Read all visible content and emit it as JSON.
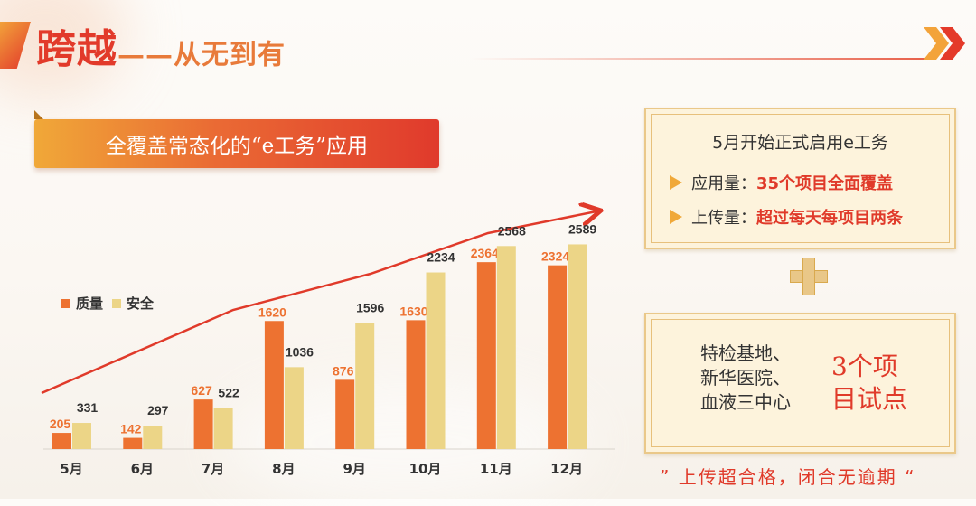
{
  "header": {
    "title": "跨越",
    "subtitle": "——从无到有"
  },
  "banner": {
    "text": "全覆盖常态化的“e工务”应用"
  },
  "legend": [
    {
      "label": "质量",
      "color": "#ed7231"
    },
    {
      "label": "安全",
      "color": "#ecd587"
    }
  ],
  "chart_data": {
    "type": "bar",
    "categories": [
      "5月",
      "6月",
      "7月",
      "8月",
      "9月",
      "10月",
      "11月",
      "12月"
    ],
    "series": [
      {
        "name": "质量",
        "values": [
          205,
          142,
          627,
          1620,
          876,
          1630,
          2364,
          2324
        ],
        "color": "#ed7231"
      },
      {
        "name": "安全",
        "values": [
          331,
          297,
          522,
          1036,
          1596,
          2234,
          2568,
          2589
        ],
        "color": "#ecd587"
      }
    ],
    "ylim": [
      0,
      3000
    ],
    "grid": false,
    "legend_position": "top-left",
    "trend_arrow": true
  },
  "info_box_1": {
    "title": "5月开始正式启用e工务",
    "line1_label": "应用量：",
    "line1_value": "35个项目全面覆盖",
    "line2_label": "上传量：",
    "line2_value": "超过每天每项目两条"
  },
  "info_box_2": {
    "sites": [
      "特检基地、",
      "新华医院、",
      "血液三中心"
    ],
    "result_line1": "3个项",
    "result_line2": "目试点"
  },
  "footer": {
    "quote": "” 上传超合格，闭合无逾期 “"
  },
  "colors": {
    "accent_red": "#e03a2a",
    "orange": "#ed7231",
    "yellow": "#ecd587"
  }
}
